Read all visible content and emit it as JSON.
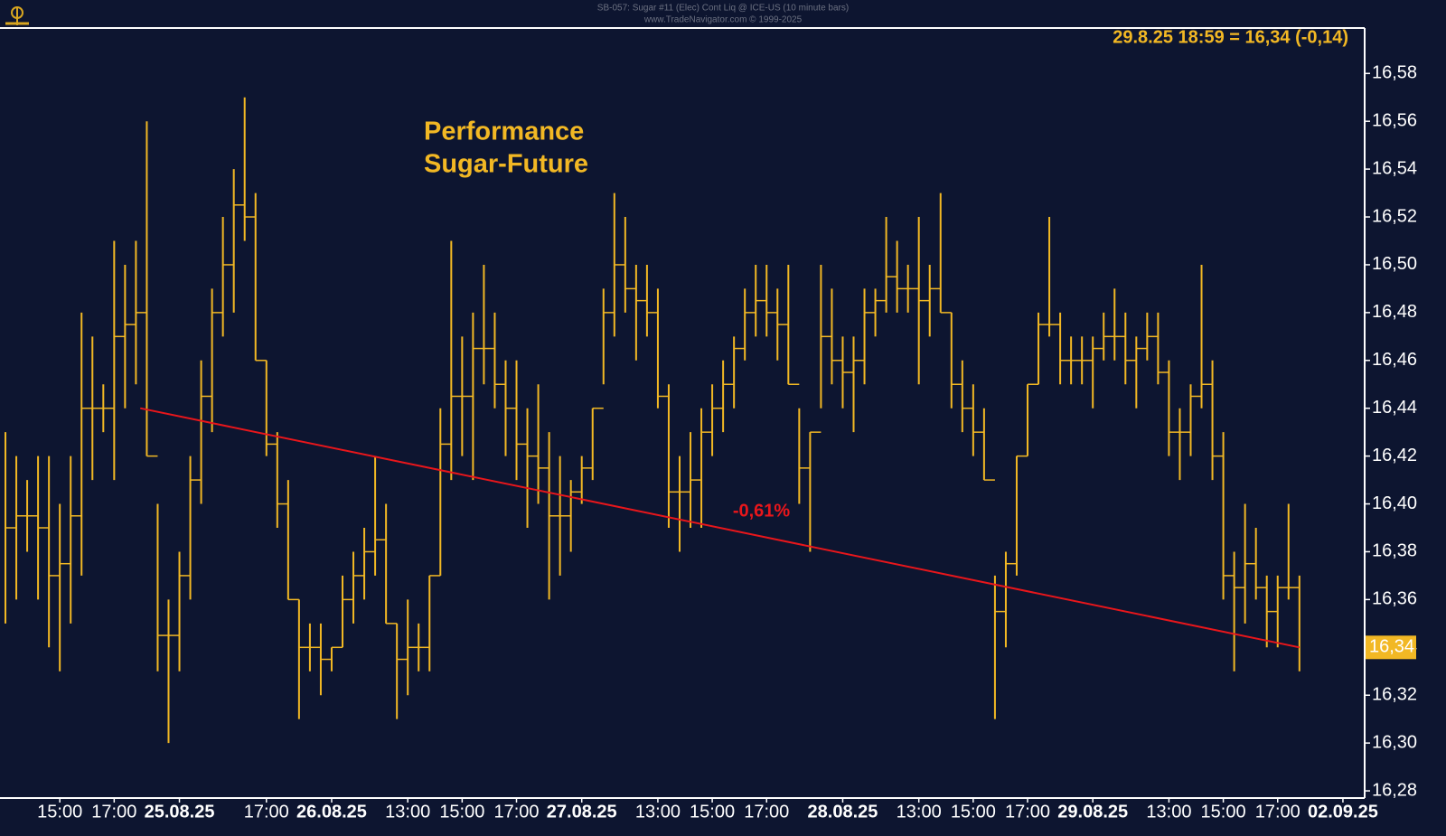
{
  "chart_data": {
    "type": "hilo",
    "header": [
      "SB-057:  Sugar #11 (Elec) Cont Liq @ ICE-US  (10 minute bars)",
      "www.TradeNavigator.com © 1999-2025"
    ],
    "title": [
      "Performance",
      "Sugar-Future"
    ],
    "info": "29.8.25 18:59 = 16,34 (-0,14)",
    "color": "#f2b824",
    "high": [
      16.43,
      16.42,
      16.41,
      16.42,
      16.42,
      16.4,
      16.42,
      16.48,
      16.47,
      16.45,
      16.51,
      16.5,
      16.51,
      16.56,
      16.4,
      16.36,
      16.38,
      16.42,
      16.46,
      16.49,
      16.52,
      16.54,
      16.57,
      16.53,
      16.46,
      16.43,
      16.41,
      16.36,
      16.35,
      16.35,
      16.34,
      16.37,
      16.38,
      16.39,
      16.42,
      16.4,
      16.35,
      16.36,
      16.35,
      16.37,
      16.44,
      16.51,
      16.47,
      16.48,
      16.5,
      16.48,
      16.46,
      16.46,
      16.44,
      16.45,
      16.43,
      16.42,
      16.41,
      16.42,
      16.44,
      16.49,
      16.53,
      16.52,
      16.5,
      16.5,
      16.49,
      16.45,
      16.42,
      16.43,
      16.44,
      16.45,
      16.46,
      16.47,
      16.49,
      16.5,
      16.5,
      16.49,
      16.5,
      16.44,
      16.43,
      16.5,
      16.49,
      16.47,
      16.47,
      16.49,
      16.49,
      16.52,
      16.51,
      16.5,
      16.52,
      16.5,
      16.53,
      16.48,
      16.46,
      16.45,
      16.44,
      16.37,
      16.38,
      16.42,
      16.45,
      16.48,
      16.52,
      16.48,
      16.47,
      16.47,
      16.47,
      16.48,
      16.49,
      16.48,
      16.47,
      16.48,
      16.48,
      16.46,
      16.44,
      16.45,
      16.5,
      16.46,
      16.43,
      16.38,
      16.4,
      16.39,
      16.37,
      16.37,
      16.4,
      16.37
    ],
    "low": [
      16.35,
      16.36,
      16.38,
      16.36,
      16.34,
      16.33,
      16.35,
      16.37,
      16.41,
      16.43,
      16.41,
      16.44,
      16.45,
      16.42,
      16.33,
      16.3,
      16.33,
      16.36,
      16.4,
      16.43,
      16.47,
      16.48,
      16.51,
      16.46,
      16.42,
      16.39,
      16.36,
      16.31,
      16.33,
      16.32,
      16.33,
      16.34,
      16.35,
      16.36,
      16.37,
      16.35,
      16.31,
      16.32,
      16.33,
      16.33,
      16.37,
      16.41,
      16.42,
      16.41,
      16.45,
      16.44,
      16.42,
      16.41,
      16.39,
      16.4,
      16.36,
      16.37,
      16.38,
      16.4,
      16.41,
      16.45,
      16.47,
      16.48,
      16.46,
      16.47,
      16.44,
      16.39,
      16.38,
      16.39,
      16.39,
      16.42,
      16.43,
      16.44,
      16.46,
      16.47,
      16.47,
      16.46,
      16.45,
      16.4,
      16.38,
      16.44,
      16.45,
      16.44,
      16.43,
      16.45,
      16.47,
      16.48,
      16.48,
      16.48,
      16.45,
      16.47,
      16.48,
      16.44,
      16.43,
      16.42,
      16.41,
      16.31,
      16.34,
      16.37,
      16.42,
      16.45,
      16.47,
      16.45,
      16.45,
      16.45,
      16.44,
      16.46,
      16.46,
      16.45,
      16.44,
      16.46,
      16.45,
      16.42,
      16.41,
      16.42,
      16.44,
      16.41,
      16.36,
      16.33,
      16.35,
      16.36,
      16.34,
      16.34,
      16.36,
      16.33
    ],
    "xlim": [
      -0.5,
      125
    ],
    "xticks": [
      {
        "value": 5,
        "label": "15:00"
      },
      {
        "value": 10,
        "label": "17:00"
      },
      {
        "value": 16,
        "label": "25.08.25"
      },
      {
        "value": 24,
        "label": "17:00"
      },
      {
        "value": 30,
        "label": "26.08.25"
      },
      {
        "value": 37,
        "label": "13:00"
      },
      {
        "value": 42,
        "label": "15:00"
      },
      {
        "value": 47,
        "label": "17:00"
      },
      {
        "value": 53,
        "label": "27.08.25"
      },
      {
        "value": 60,
        "label": "13:00"
      },
      {
        "value": 65,
        "label": "15:00"
      },
      {
        "value": 70,
        "label": "17:00"
      },
      {
        "value": 77,
        "label": "28.08.25"
      },
      {
        "value": 84,
        "label": "13:00"
      },
      {
        "value": 89,
        "label": "15:00"
      },
      {
        "value": 94,
        "label": "17:00"
      },
      {
        "value": 100,
        "label": "29.08.25"
      },
      {
        "value": 107,
        "label": "13:00"
      },
      {
        "value": 112,
        "label": "15:00"
      },
      {
        "value": 117,
        "label": "17:00"
      },
      {
        "value": 123,
        "label": "02.09.25"
      }
    ],
    "ylim": [
      16.277,
      16.599
    ],
    "yticks": [
      {
        "value": 16.28,
        "label": "16,28"
      },
      {
        "value": 16.3,
        "label": "16,30"
      },
      {
        "value": 16.32,
        "label": "16,32"
      },
      {
        "value": 16.34,
        "label": "16,34"
      },
      {
        "value": 16.36,
        "label": "16,36"
      },
      {
        "value": 16.38,
        "label": "16,38"
      },
      {
        "value": 16.4,
        "label": "16,40"
      },
      {
        "value": 16.42,
        "label": "16,42"
      },
      {
        "value": 16.44,
        "label": "16,44"
      },
      {
        "value": 16.46,
        "label": "16,46"
      },
      {
        "value": 16.48,
        "label": "16,48"
      },
      {
        "value": 16.5,
        "label": "16,50"
      },
      {
        "value": 16.52,
        "label": "16,52"
      },
      {
        "value": 16.54,
        "label": "16,54"
      },
      {
        "value": 16.56,
        "label": "16,56"
      },
      {
        "value": 16.58,
        "label": "16,58"
      }
    ],
    "last_tag": {
      "value": 16.34,
      "label": "16,34"
    },
    "trendline": {
      "x": [
        12.4,
        119
      ],
      "values": [
        16.44,
        16.34
      ],
      "color": "#e8161b",
      "label": "-0,61%"
    }
  }
}
